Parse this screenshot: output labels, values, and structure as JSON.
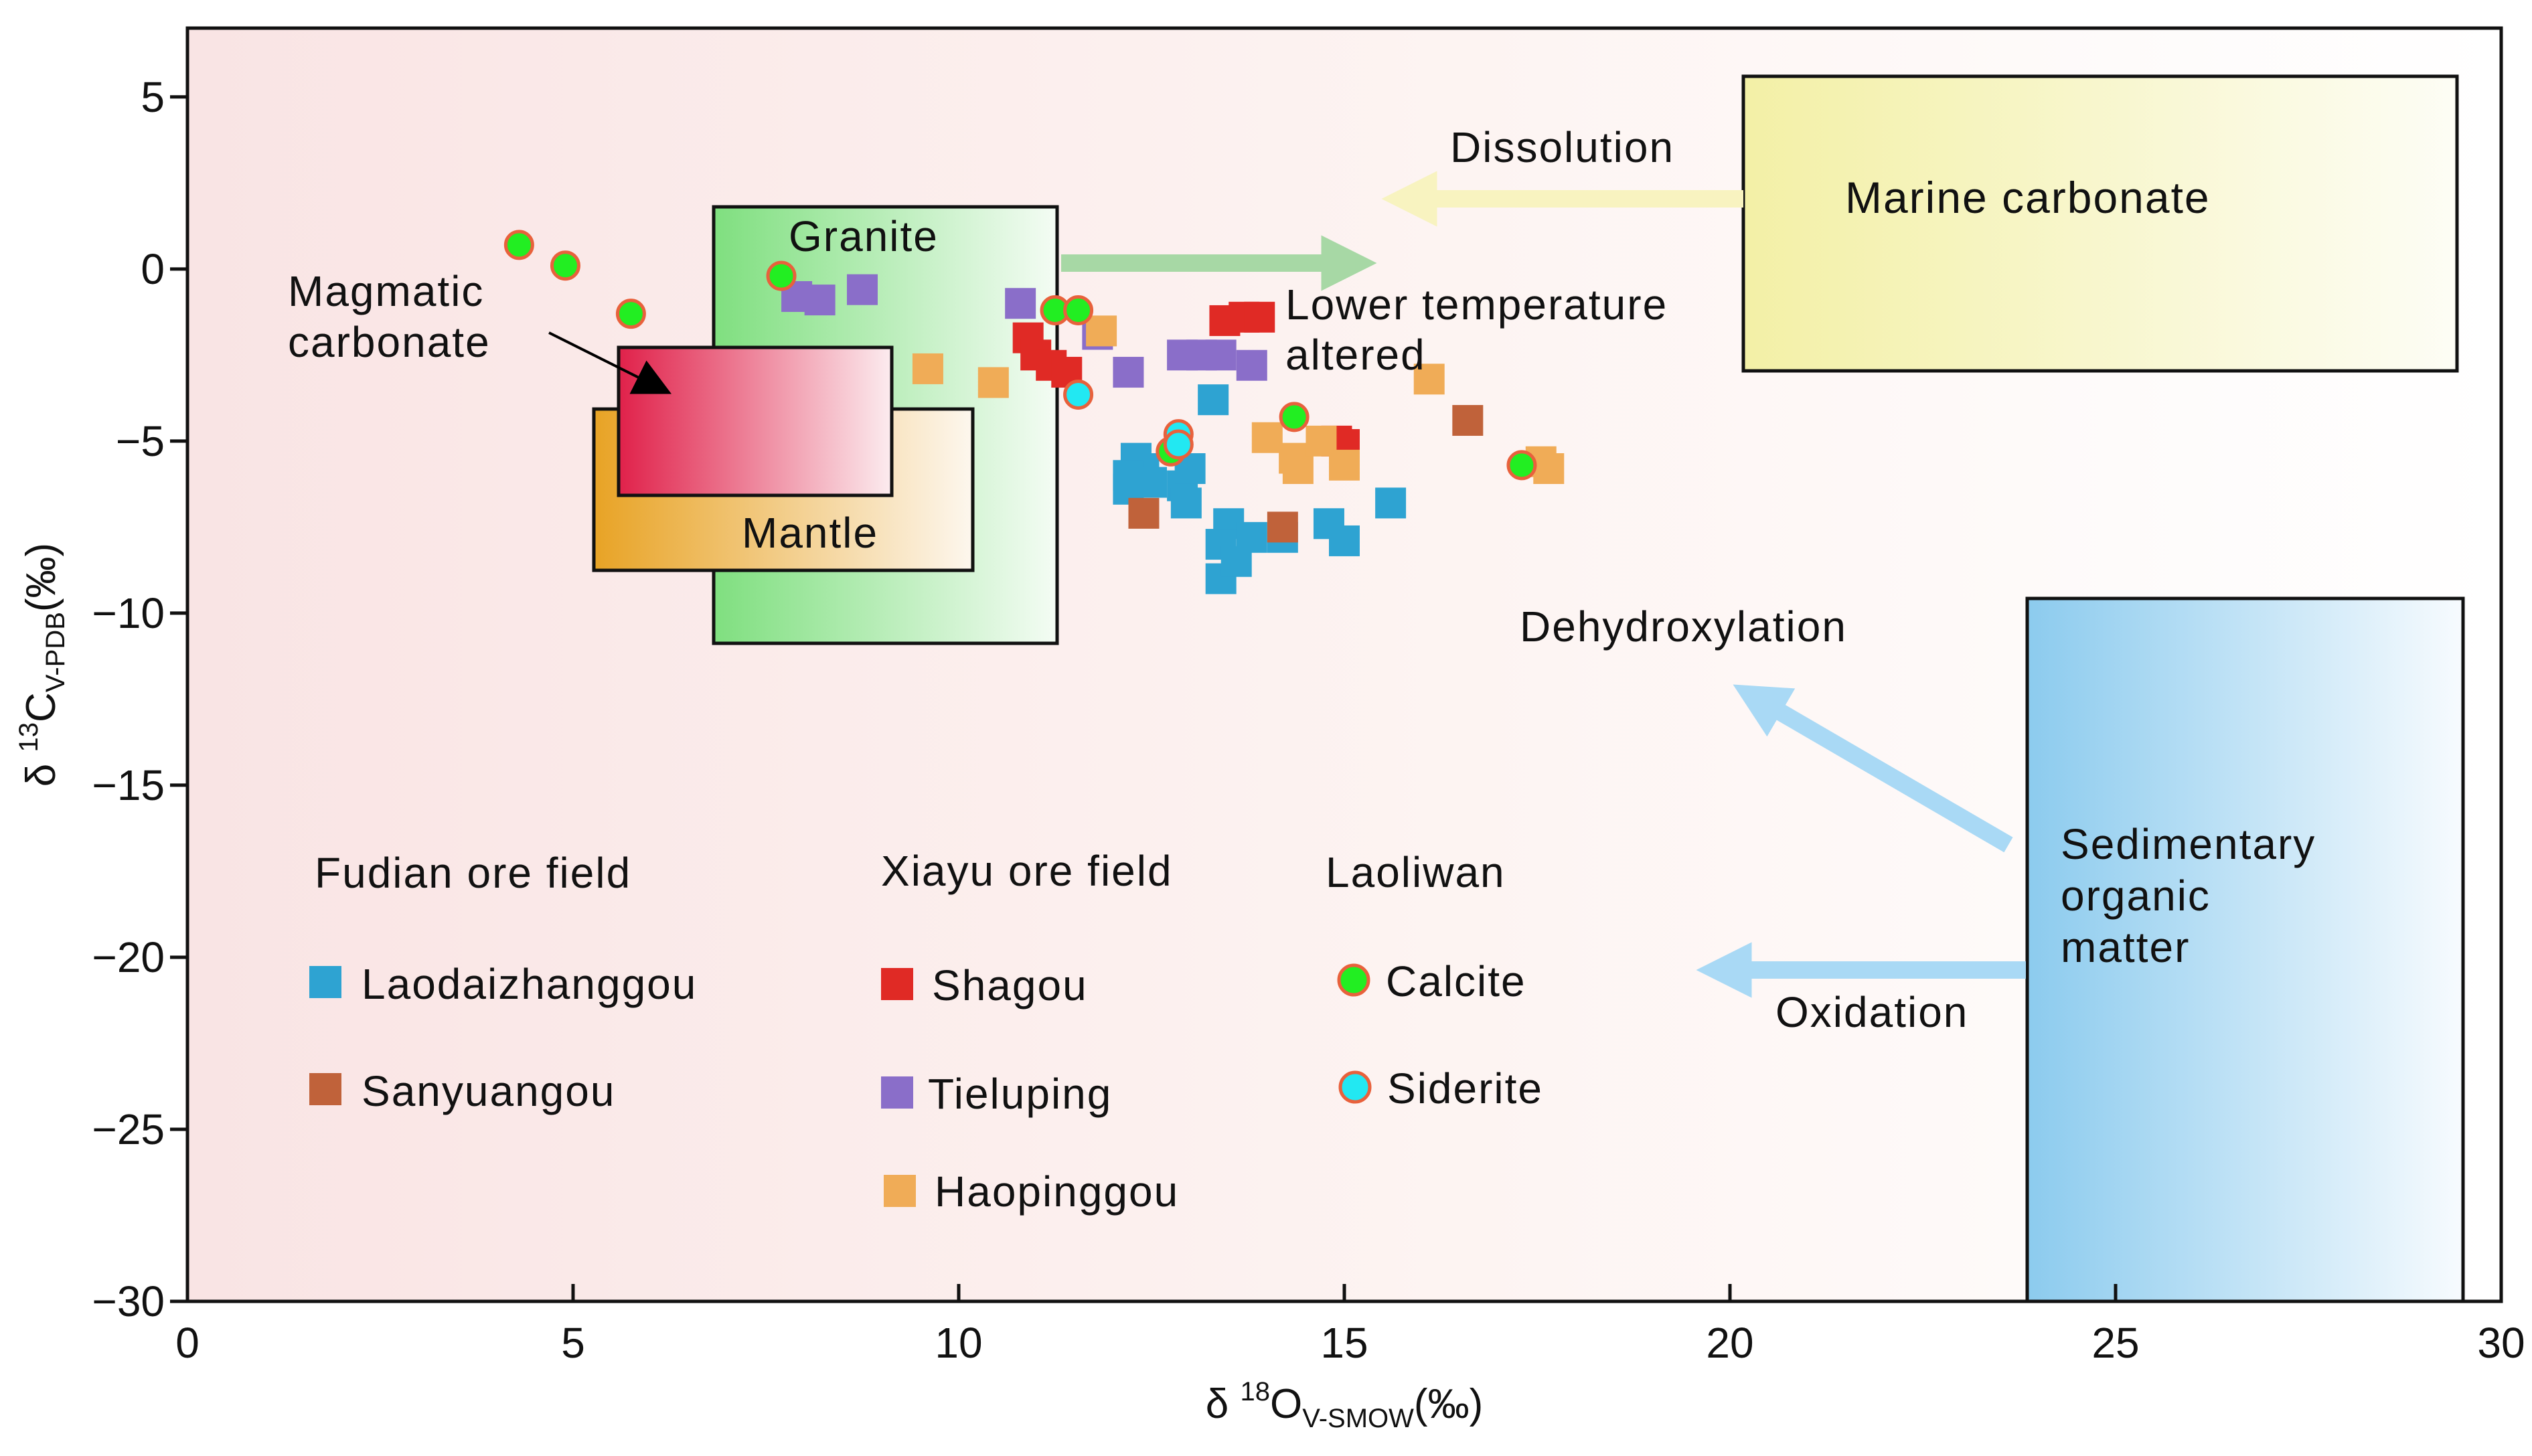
{
  "chart_data": {
    "type": "scatter",
    "xlabel": {
      "prefix": "δ ",
      "sup": "18",
      "main": "O",
      "sub": "V-SMOW",
      "unit": "(‰)"
    },
    "ylabel": {
      "prefix": "δ ",
      "sup": "13",
      "main": "C",
      "sub": "V-PDB",
      "unit": "(‰)"
    },
    "xlim": [
      0,
      30
    ],
    "ylim": [
      -30,
      7
    ],
    "x_ticks": [
      0,
      5,
      10,
      15,
      20,
      25,
      30
    ],
    "y_ticks": [
      5,
      0,
      -5,
      -10,
      -15,
      -20,
      -25,
      -30
    ],
    "y_tick_labels": [
      "5",
      "0",
      "−5",
      "−10",
      "−15",
      "−20",
      "−25",
      "−30"
    ],
    "grid": false,
    "fields": [
      {
        "name": "Granite",
        "x_range": [
          6.8,
          11.25
        ],
        "y_range": [
          -10.9,
          1.65
        ],
        "color": "#3fc43f"
      },
      {
        "name": "Mantle",
        "x_range": [
          5.25,
          10.15
        ],
        "y_range": [
          -8.8,
          -4.1
        ],
        "color": "#e8a32b"
      },
      {
        "name": "Magmatic carbonate",
        "x_range": [
          5.55,
          9.0
        ],
        "y_range": [
          -6.6,
          -2.4
        ],
        "color": "#e0234e"
      },
      {
        "name": "Marine carbonate",
        "x_range": [
          20.1,
          29.4
        ],
        "y_range": [
          -3.1,
          5.4
        ],
        "color": "#f3f0a6"
      },
      {
        "name": "Sedimentary organic matter",
        "x_range": [
          23.75,
          29.45
        ],
        "y_range": [
          -30,
          -9.6
        ],
        "color": "#8ccbee"
      }
    ],
    "processes": [
      {
        "name": "Dissolution",
        "from": [
          20.1,
          1.9
        ],
        "to": [
          15.5,
          1.9
        ],
        "color": "#f8f3c0"
      },
      {
        "name": "Lower temperature altered",
        "from": [
          11.3,
          0.05
        ],
        "to": [
          15.3,
          0.05
        ],
        "color": "#a7d8a5"
      },
      {
        "name": "Dehydroxylation",
        "from": [
          23.9,
          -16.9
        ],
        "to": [
          19.9,
          -11.9
        ],
        "color": "#a9d9f5"
      },
      {
        "name": "Oxidation",
        "from": [
          23.9,
          -20.3
        ],
        "to": [
          19.6,
          -20.3
        ],
        "color": "#a9d9f5"
      }
    ],
    "series": [
      {
        "group": "Fudian ore field",
        "name": "Laodaizhanggou",
        "marker": "square",
        "color": "#2ea3d2",
        "points": [
          [
            12.3,
            -5.5
          ],
          [
            12.4,
            -5.8
          ],
          [
            12.2,
            -6.0
          ],
          [
            12.2,
            -6.4
          ],
          [
            12.5,
            -6.2
          ],
          [
            12.9,
            -6.3
          ],
          [
            13.0,
            -5.8
          ],
          [
            12.95,
            -6.8
          ],
          [
            13.3,
            -3.8
          ],
          [
            13.5,
            -7.4
          ],
          [
            13.4,
            -8.0
          ],
          [
            13.8,
            -7.8
          ],
          [
            13.4,
            -9.0
          ],
          [
            13.6,
            -8.5
          ],
          [
            14.2,
            -7.8
          ],
          [
            14.8,
            -7.4
          ],
          [
            15.0,
            -7.9
          ],
          [
            15.6,
            -6.8
          ]
        ]
      },
      {
        "group": "Fudian ore field",
        "name": "Sanyuangou",
        "marker": "square",
        "color": "#c0623a",
        "points": [
          [
            12.4,
            -7.1
          ],
          [
            14.2,
            -7.5
          ],
          [
            16.6,
            -4.4
          ]
        ]
      },
      {
        "group": "Xiayu ore field",
        "name": "Shagou",
        "marker": "square",
        "color": "#e02a25",
        "points": [
          [
            13.45,
            -1.5
          ],
          [
            13.7,
            -1.4
          ],
          [
            13.9,
            -1.4
          ],
          [
            10.9,
            -2.0
          ],
          [
            11.0,
            -2.5
          ],
          [
            11.2,
            -2.8
          ],
          [
            11.4,
            -3.0
          ],
          [
            14.9,
            -5.0
          ],
          [
            15.0,
            -5.1
          ]
        ]
      },
      {
        "group": "Xiayu ore field",
        "name": "Tieluping",
        "marker": "square",
        "color": "#8a6ec9",
        "points": [
          [
            7.9,
            -0.8
          ],
          [
            8.2,
            -0.9
          ],
          [
            8.75,
            -0.6
          ],
          [
            10.8,
            -1.0
          ],
          [
            11.8,
            -1.9
          ],
          [
            12.2,
            -3.0
          ],
          [
            12.9,
            -2.5
          ],
          [
            13.15,
            -2.5
          ],
          [
            13.4,
            -2.5
          ],
          [
            13.8,
            -2.8
          ]
        ]
      },
      {
        "group": "Xiayu ore field",
        "name": "Haopinggou",
        "marker": "square",
        "color": "#f0ac57",
        "points": [
          [
            9.6,
            -2.9
          ],
          [
            10.45,
            -3.3
          ],
          [
            11.85,
            -1.8
          ],
          [
            14.0,
            -4.9
          ],
          [
            14.35,
            -5.5
          ],
          [
            14.4,
            -5.8
          ],
          [
            14.7,
            -5.0
          ],
          [
            15.0,
            -5.7
          ],
          [
            16.1,
            -3.2
          ],
          [
            17.55,
            -5.6
          ],
          [
            17.65,
            -5.8
          ]
        ]
      },
      {
        "group": "Laoliwan",
        "name": "Calcite",
        "marker": "circle",
        "color": "#22ee22",
        "edge": "#e8613c",
        "points": [
          [
            4.3,
            0.7
          ],
          [
            4.9,
            0.1
          ],
          [
            5.75,
            -1.3
          ],
          [
            7.7,
            -0.2
          ],
          [
            11.25,
            -1.2
          ],
          [
            11.55,
            -1.2
          ],
          [
            12.75,
            -5.3
          ],
          [
            14.35,
            -4.3
          ],
          [
            17.3,
            -5.7
          ]
        ]
      },
      {
        "group": "Laoliwan",
        "name": "Siderite",
        "marker": "circle",
        "color": "#22e8f2",
        "edge": "#e8613c",
        "points": [
          [
            11.55,
            -3.65
          ],
          [
            12.85,
            -4.8
          ],
          [
            12.85,
            -5.1
          ]
        ]
      }
    ],
    "legend": {
      "placement": "lower-left",
      "groups": [
        {
          "title": "Fudian ore field",
          "entries": [
            "Laodaizhanggou",
            "Sanyuangou"
          ]
        },
        {
          "title": "Xiayu ore field",
          "entries": [
            "Shagou",
            "Tieluping",
            "Haopinggou"
          ]
        },
        {
          "title": "Laoliwan",
          "entries": [
            "Calcite",
            "Siderite"
          ]
        }
      ]
    },
    "annotations": {
      "granite": "Granite",
      "magmatic_1": "Magmatic",
      "magmatic_2": "carbonate",
      "mantle": "Mantle",
      "marine": "Marine carbonate",
      "dissolution": "Dissolution",
      "lower_temp_1": "Lower temperature",
      "lower_temp_2": "altered",
      "dehydroxylation": "Dehydroxylation",
      "oxidation": "Oxidation",
      "sedimentary_1": "Sedimentary",
      "sedimentary_2": "organic",
      "sedimentary_3": "matter"
    }
  }
}
